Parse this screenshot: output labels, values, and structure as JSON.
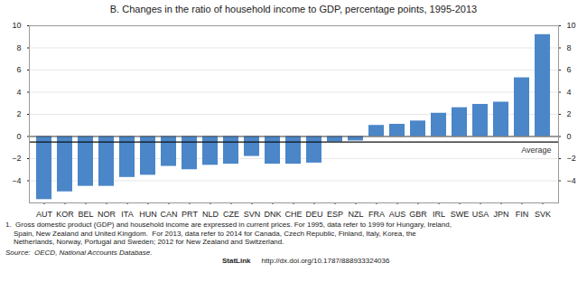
{
  "chart_data": {
    "type": "bar",
    "title": "B. Changes in the ratio of household income to GDP, percentage points, 1995-2013",
    "categories": [
      "AUT",
      "KOR",
      "BEL",
      "NOR",
      "ITA",
      "HUN",
      "CAN",
      "PRT",
      "NLD",
      "CZE",
      "SVN",
      "DNK",
      "CHE",
      "DEU",
      "ESP",
      "NZL",
      "FRA",
      "AUS",
      "GBR",
      "IRL",
      "SWE",
      "USA",
      "JPN",
      "FIN",
      "SVK"
    ],
    "values": [
      -5.7,
      -5.0,
      -4.5,
      -4.5,
      -3.7,
      -3.5,
      -2.7,
      -3.0,
      -2.6,
      -2.5,
      -1.8,
      -2.5,
      -2.5,
      -2.4,
      -0.5,
      -0.4,
      1.0,
      1.1,
      1.4,
      2.1,
      2.6,
      2.9,
      3.1,
      5.3,
      9.2
    ],
    "color": "#4a86c8",
    "ylim": [
      -6,
      10
    ],
    "yticks": [
      -4,
      -2,
      0,
      2,
      4,
      6,
      8,
      10
    ],
    "grid": true,
    "average": {
      "value": -0.5,
      "label": "Average"
    },
    "footnotes": [
      "1.  Gross domestic product (GDP) and household income are expressed in current prices. For 1995, data refer to 1999 for Hungary, Ireland,",
      "    Spain, New Zealand and United Kingdom.  For 2013, data refer to 2014 for Canada, Czech Republic, Finland, Italy, Korea, the",
      "    Netherlands, Norway, Portugal and Sweden; 2012 for New Zealand and Switzerland."
    ],
    "source": "Source:  OECD, National Accounts Database.",
    "statlink": {
      "label": "StatLink",
      "url": "http://dx.doi.org/10.1787/888933324036"
    }
  }
}
